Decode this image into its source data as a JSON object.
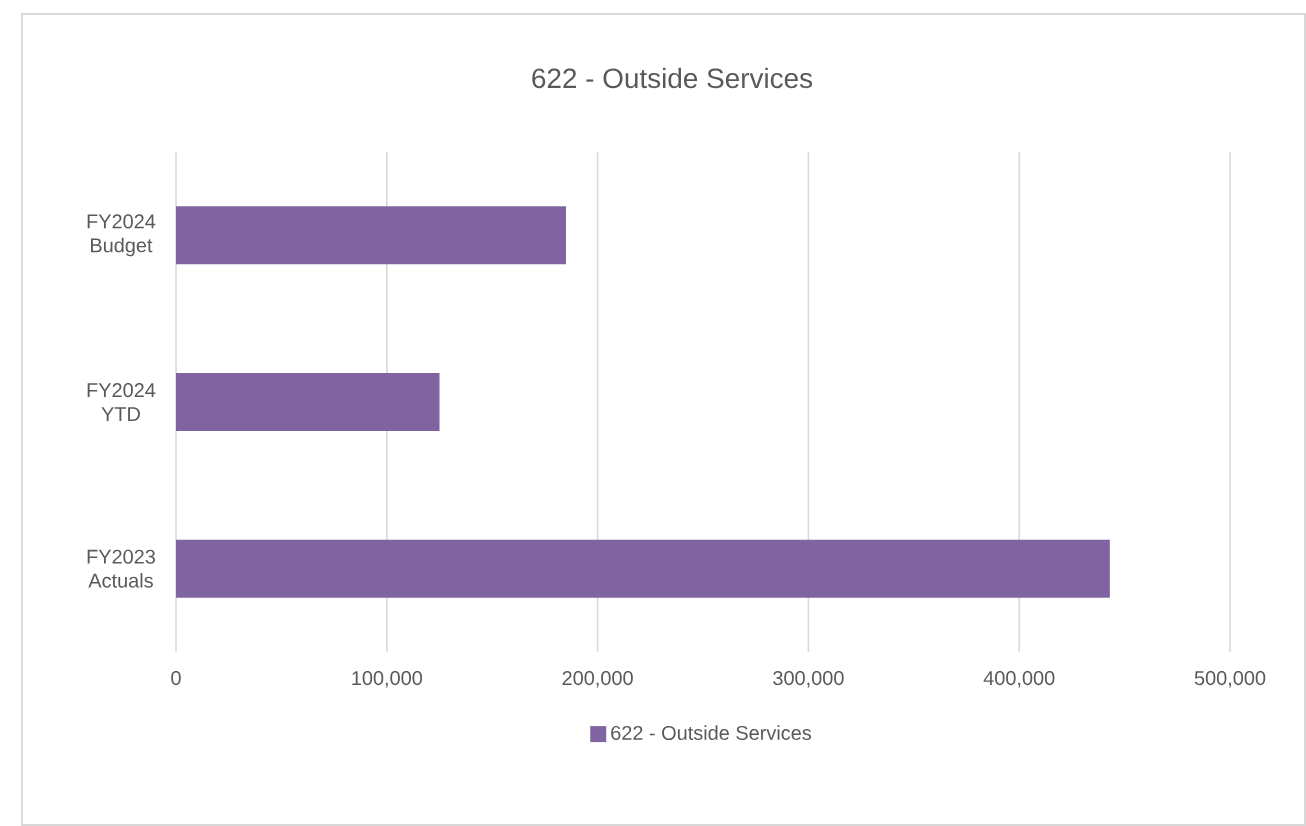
{
  "chart_data": {
    "type": "bar",
    "orientation": "horizontal",
    "title": "622 - Outside Services",
    "categories": [
      "FY2024 Budget",
      "FY2024 YTD",
      "FY2023 Actuals"
    ],
    "series": [
      {
        "name": "622 - Outside Services",
        "color": "#8064a2",
        "values": [
          185000,
          125000,
          443000
        ]
      }
    ],
    "xlim": [
      0,
      500000
    ],
    "xticks": [
      {
        "value": 0,
        "label": "0"
      },
      {
        "value": 100000,
        "label": "100,000"
      },
      {
        "value": 200000,
        "label": "200,000"
      },
      {
        "value": 300000,
        "label": "300,000"
      },
      {
        "value": 400000,
        "label": "400,000"
      },
      {
        "value": 500000,
        "label": "500,000"
      }
    ],
    "grid": "x",
    "legend": "bottom"
  }
}
